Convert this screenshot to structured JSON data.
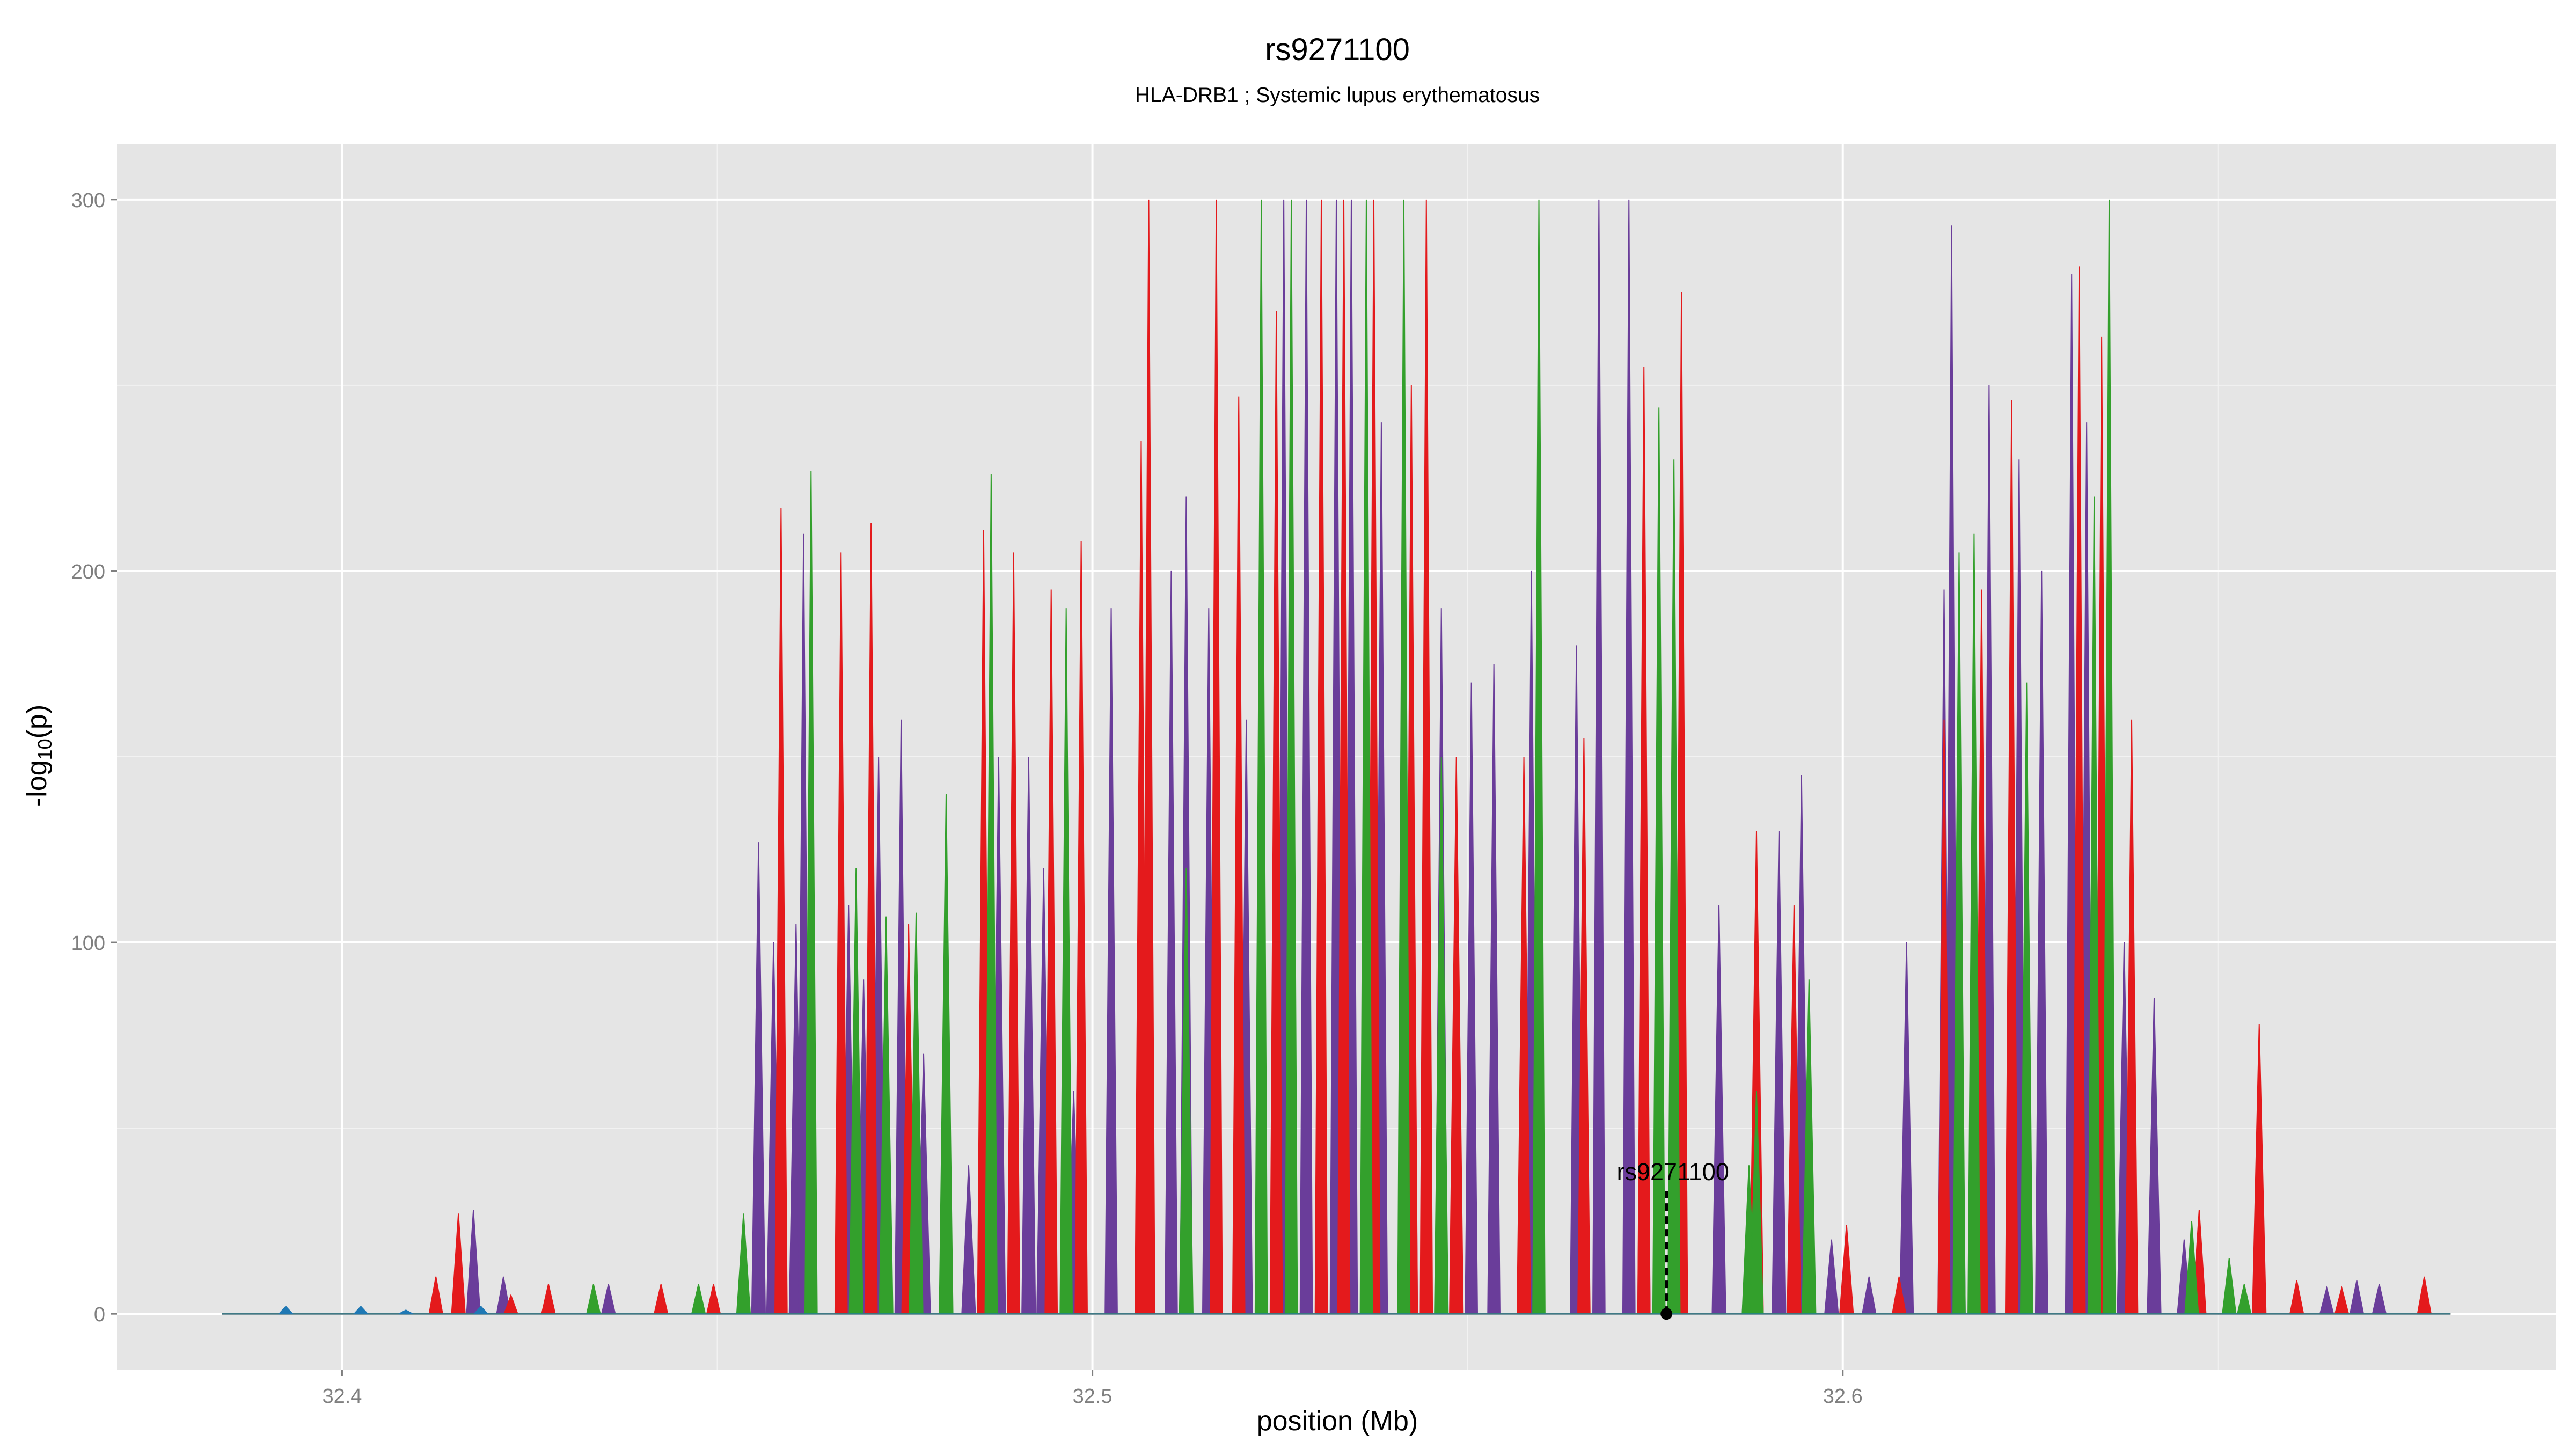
{
  "chart_data": {
    "type": "area",
    "title": "rs9271100",
    "subtitle": "HLA-DRB1 ; Systemic lupus erythematosus",
    "xlabel": "position (Mb)",
    "ylabel_main": "-log",
    "ylabel_sub": "10",
    "ylabel_tail": "(p)",
    "xlim": [
      32.37,
      32.695
    ],
    "ylim": [
      -15,
      315
    ],
    "x_ticks": [
      32.4,
      32.5,
      32.6
    ],
    "x_tick_labels": [
      "32.4",
      "32.5",
      "32.6"
    ],
    "y_ticks": [
      0,
      100,
      200,
      300
    ],
    "y_tick_labels": [
      "0",
      "100",
      "200",
      "300"
    ],
    "grid": true,
    "legend": "none",
    "annotation": {
      "label": "rs9271100",
      "x": 32.5765,
      "y": 0
    },
    "colors": {
      "panel": "#e5e5e5",
      "grid_major": "#ffffff",
      "grid_minor": "#f2f2f2",
      "red": "#e41a1c",
      "green": "#33a02c",
      "purple": "#6a3d9a",
      "blue": "#1f78b4",
      "text": "#000000",
      "tick_text": "#7f7f7f"
    },
    "series": [
      {
        "color": "purple",
        "peaks": [
          [
            32.4175,
            28
          ],
          [
            32.4215,
            10
          ],
          [
            32.4355,
            8
          ],
          [
            32.4555,
            127
          ],
          [
            32.4575,
            100
          ],
          [
            32.4605,
            105
          ],
          [
            32.4615,
            210
          ],
          [
            32.4675,
            110
          ],
          [
            32.4695,
            90
          ],
          [
            32.4715,
            150
          ],
          [
            32.4745,
            160
          ],
          [
            32.4775,
            70
          ],
          [
            32.4835,
            40
          ],
          [
            32.4875,
            150
          ],
          [
            32.4915,
            150
          ],
          [
            32.4935,
            120
          ],
          [
            32.4975,
            60
          ],
          [
            32.5025,
            190
          ],
          [
            32.5065,
            160
          ],
          [
            32.5105,
            200
          ],
          [
            32.5125,
            220
          ],
          [
            32.5155,
            190
          ],
          [
            32.5205,
            160
          ],
          [
            32.5255,
            300
          ],
          [
            32.5285,
            300
          ],
          [
            32.5325,
            300
          ],
          [
            32.5345,
            300
          ],
          [
            32.5385,
            240
          ],
          [
            32.5425,
            220
          ],
          [
            32.5465,
            190
          ],
          [
            32.5505,
            170
          ],
          [
            32.5535,
            175
          ],
          [
            32.5585,
            200
          ],
          [
            32.5645,
            180
          ],
          [
            32.5675,
            300
          ],
          [
            32.5715,
            300
          ],
          [
            32.5735,
            210
          ],
          [
            32.5785,
            190
          ],
          [
            32.5835,
            110
          ],
          [
            32.5875,
            30
          ],
          [
            32.5915,
            130
          ],
          [
            32.5945,
            145
          ],
          [
            32.5985,
            20
          ],
          [
            32.6035,
            10
          ],
          [
            32.6085,
            100
          ],
          [
            32.6135,
            195
          ],
          [
            32.6145,
            293
          ],
          [
            32.6155,
            180
          ],
          [
            32.6195,
            250
          ],
          [
            32.6235,
            230
          ],
          [
            32.6265,
            200
          ],
          [
            32.6305,
            280
          ],
          [
            32.6325,
            240
          ],
          [
            32.6345,
            210
          ],
          [
            32.6375,
            100
          ],
          [
            32.6415,
            85
          ],
          [
            32.6455,
            20
          ],
          [
            32.6515,
            10
          ],
          [
            32.6645,
            7
          ],
          [
            32.6685,
            9
          ],
          [
            32.6715,
            8
          ]
        ]
      },
      {
        "color": "red",
        "peaks": [
          [
            32.4125,
            10
          ],
          [
            32.4155,
            27
          ],
          [
            32.4225,
            5
          ],
          [
            32.4275,
            8
          ],
          [
            32.4425,
            8
          ],
          [
            32.4495,
            8
          ],
          [
            32.4585,
            217
          ],
          [
            32.4665,
            205
          ],
          [
            32.4705,
            213
          ],
          [
            32.4755,
            105
          ],
          [
            32.4855,
            211
          ],
          [
            32.4895,
            205
          ],
          [
            32.4945,
            195
          ],
          [
            32.4985,
            208
          ],
          [
            32.5065,
            235
          ],
          [
            32.5075,
            300
          ],
          [
            32.5165,
            300
          ],
          [
            32.5195,
            247
          ],
          [
            32.5245,
            270
          ],
          [
            32.5305,
            300
          ],
          [
            32.5335,
            300
          ],
          [
            32.5375,
            300
          ],
          [
            32.5425,
            250
          ],
          [
            32.5445,
            300
          ],
          [
            32.5485,
            150
          ],
          [
            32.5575,
            150
          ],
          [
            32.5655,
            155
          ],
          [
            32.5735,
            255
          ],
          [
            32.5785,
            275
          ],
          [
            32.5885,
            130
          ],
          [
            32.5935,
            110
          ],
          [
            32.6005,
            24
          ],
          [
            32.6075,
            10
          ],
          [
            32.6135,
            160
          ],
          [
            32.6185,
            195
          ],
          [
            32.6225,
            246
          ],
          [
            32.6315,
            282
          ],
          [
            32.6345,
            263
          ],
          [
            32.6385,
            160
          ],
          [
            32.6475,
            28
          ],
          [
            32.6555,
            78
          ],
          [
            32.6605,
            9
          ],
          [
            32.6665,
            7
          ],
          [
            32.6775,
            10
          ]
        ]
      },
      {
        "color": "green",
        "peaks": [
          [
            32.4335,
            8
          ],
          [
            32.4475,
            8
          ],
          [
            32.4535,
            27
          ],
          [
            32.4625,
            227
          ],
          [
            32.4685,
            120
          ],
          [
            32.4725,
            107
          ],
          [
            32.4765,
            108
          ],
          [
            32.4805,
            140
          ],
          [
            32.4865,
            226
          ],
          [
            32.4965,
            190
          ],
          [
            32.5125,
            120
          ],
          [
            32.5225,
            300
          ],
          [
            32.5265,
            300
          ],
          [
            32.5365,
            300
          ],
          [
            32.5415,
            300
          ],
          [
            32.5465,
            150
          ],
          [
            32.5595,
            300
          ],
          [
            32.5755,
            244
          ],
          [
            32.5775,
            230
          ],
          [
            32.5875,
            40
          ],
          [
            32.5885,
            60
          ],
          [
            32.5955,
            90
          ],
          [
            32.6155,
            205
          ],
          [
            32.6175,
            210
          ],
          [
            32.6245,
            170
          ],
          [
            32.6335,
            220
          ],
          [
            32.6355,
            300
          ],
          [
            32.6465,
            25
          ],
          [
            32.6515,
            15
          ],
          [
            32.6535,
            8
          ]
        ]
      },
      {
        "color": "blue",
        "peaks": [
          [
            32.3925,
            2
          ],
          [
            32.4025,
            2
          ],
          [
            32.4085,
            1
          ],
          [
            32.4185,
            2
          ]
        ]
      }
    ]
  }
}
